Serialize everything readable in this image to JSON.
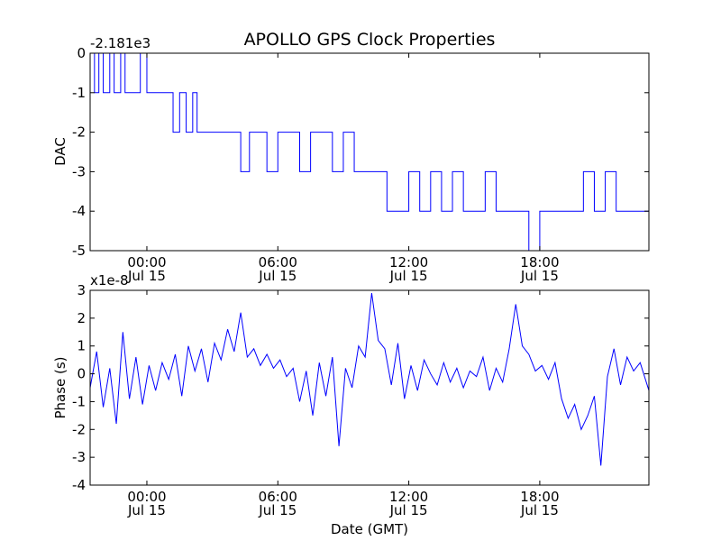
{
  "title": "APOLLO GPS Clock Properties",
  "chart_data": [
    {
      "type": "line",
      "name": "dac-panel",
      "ylabel": "DAC",
      "offset_label": "-2.181e3",
      "ylim": [
        -5,
        0
      ],
      "yticks": [
        "-5",
        "-4",
        "-3",
        "-2",
        "-1",
        "0"
      ],
      "xlim_hours": [
        -2.6,
        23.0
      ],
      "xticks": [
        {
          "time": "00:00",
          "date": "Jul 15",
          "hour": 0
        },
        {
          "time": "06:00",
          "date": "Jul 15",
          "hour": 6
        },
        {
          "time": "12:00",
          "date": "Jul 15",
          "hour": 12
        },
        {
          "time": "18:00",
          "date": "Jul 15",
          "hour": 18
        }
      ],
      "x": [
        -2.6,
        -2.4,
        -2.2,
        -2.0,
        -1.7,
        -1.5,
        -1.2,
        -1.0,
        -0.8,
        -0.3,
        0.0,
        0.5,
        1.0,
        1.2,
        1.5,
        1.8,
        2.1,
        2.3,
        2.6,
        3.0,
        3.5,
        4.0,
        4.3,
        4.7,
        5.0,
        5.5,
        6.0,
        6.5,
        7.0,
        7.5,
        8.0,
        8.5,
        9.0,
        9.5,
        10.0,
        10.5,
        11.0,
        11.5,
        12.0,
        12.5,
        13.0,
        13.5,
        14.0,
        14.5,
        15.0,
        15.5,
        16.0,
        16.5,
        17.0,
        17.5,
        18.0,
        18.5,
        19.0,
        19.5,
        20.0,
        20.5,
        21.0,
        21.5,
        22.0,
        23.0
      ],
      "values": [
        0,
        -1,
        0,
        -1,
        0,
        -1,
        0,
        -1,
        -1,
        0,
        -1,
        -1,
        -1,
        -2,
        -1,
        -2,
        -1,
        -2,
        -2,
        -2,
        -2,
        -2,
        -3,
        -2,
        -2,
        -3,
        -2,
        -2,
        -3,
        -2,
        -2,
        -3,
        -2,
        -3,
        -3,
        -3,
        -4,
        -4,
        -3,
        -4,
        -3,
        -4,
        -3,
        -4,
        -4,
        -3,
        -4,
        -4,
        -4,
        -5,
        -4,
        -4,
        -4,
        -4,
        -3,
        -4,
        -3,
        -4,
        -4,
        -4
      ]
    },
    {
      "type": "line",
      "name": "phase-panel",
      "ylabel": "Phase (s)",
      "xlabel": "Date (GMT)",
      "offset_label": "x1e-8",
      "ylim": [
        -4,
        3
      ],
      "yticks": [
        "-4",
        "-3",
        "-2",
        "-1",
        "0",
        "1",
        "2",
        "3"
      ],
      "xlim_hours": [
        -2.6,
        23.0
      ],
      "xticks": [
        {
          "time": "00:00",
          "date": "Jul 15",
          "hour": 0
        },
        {
          "time": "06:00",
          "date": "Jul 15",
          "hour": 6
        },
        {
          "time": "12:00",
          "date": "Jul 15",
          "hour": 12
        },
        {
          "time": "18:00",
          "date": "Jul 15",
          "hour": 18
        }
      ],
      "x": [
        -2.6,
        -2.3,
        -2.0,
        -1.7,
        -1.4,
        -1.1,
        -0.8,
        -0.5,
        -0.2,
        0.1,
        0.4,
        0.7,
        1.0,
        1.3,
        1.6,
        1.9,
        2.2,
        2.5,
        2.8,
        3.1,
        3.4,
        3.7,
        4.0,
        4.3,
        4.6,
        4.9,
        5.2,
        5.5,
        5.8,
        6.1,
        6.4,
        6.7,
        7.0,
        7.3,
        7.6,
        7.9,
        8.2,
        8.5,
        8.8,
        9.1,
        9.4,
        9.7,
        10.0,
        10.3,
        10.6,
        10.9,
        11.2,
        11.5,
        11.8,
        12.1,
        12.4,
        12.7,
        13.0,
        13.3,
        13.6,
        13.9,
        14.2,
        14.5,
        14.8,
        15.1,
        15.4,
        15.7,
        16.0,
        16.3,
        16.6,
        16.9,
        17.2,
        17.5,
        17.8,
        18.1,
        18.4,
        18.7,
        19.0,
        19.3,
        19.6,
        19.9,
        20.2,
        20.5,
        20.8,
        21.1,
        21.4,
        21.7,
        22.0,
        22.3,
        22.6,
        23.0
      ],
      "values": [
        -0.5,
        0.8,
        -1.2,
        0.2,
        -1.8,
        1.5,
        -0.9,
        0.6,
        -1.1,
        0.3,
        -0.6,
        0.4,
        -0.2,
        0.7,
        -0.8,
        1.0,
        0.1,
        0.9,
        -0.3,
        1.1,
        0.5,
        1.6,
        0.8,
        2.2,
        0.6,
        0.9,
        0.3,
        0.7,
        0.2,
        0.5,
        -0.1,
        0.2,
        -1.0,
        0.1,
        -1.5,
        0.4,
        -0.8,
        0.6,
        -2.6,
        0.2,
        -0.5,
        1.0,
        0.6,
        2.9,
        1.2,
        0.9,
        -0.4,
        1.1,
        -0.9,
        0.3,
        -0.6,
        0.5,
        0.0,
        -0.4,
        0.4,
        -0.3,
        0.2,
        -0.5,
        0.1,
        -0.1,
        0.6,
        -0.6,
        0.2,
        -0.3,
        0.9,
        2.5,
        1.0,
        0.7,
        0.1,
        0.3,
        -0.2,
        0.4,
        -0.9,
        -1.6,
        -1.1,
        -2.0,
        -1.5,
        -0.8,
        -3.3,
        -0.1,
        0.9,
        -0.4,
        0.6,
        0.1,
        0.4,
        -0.6
      ]
    }
  ]
}
